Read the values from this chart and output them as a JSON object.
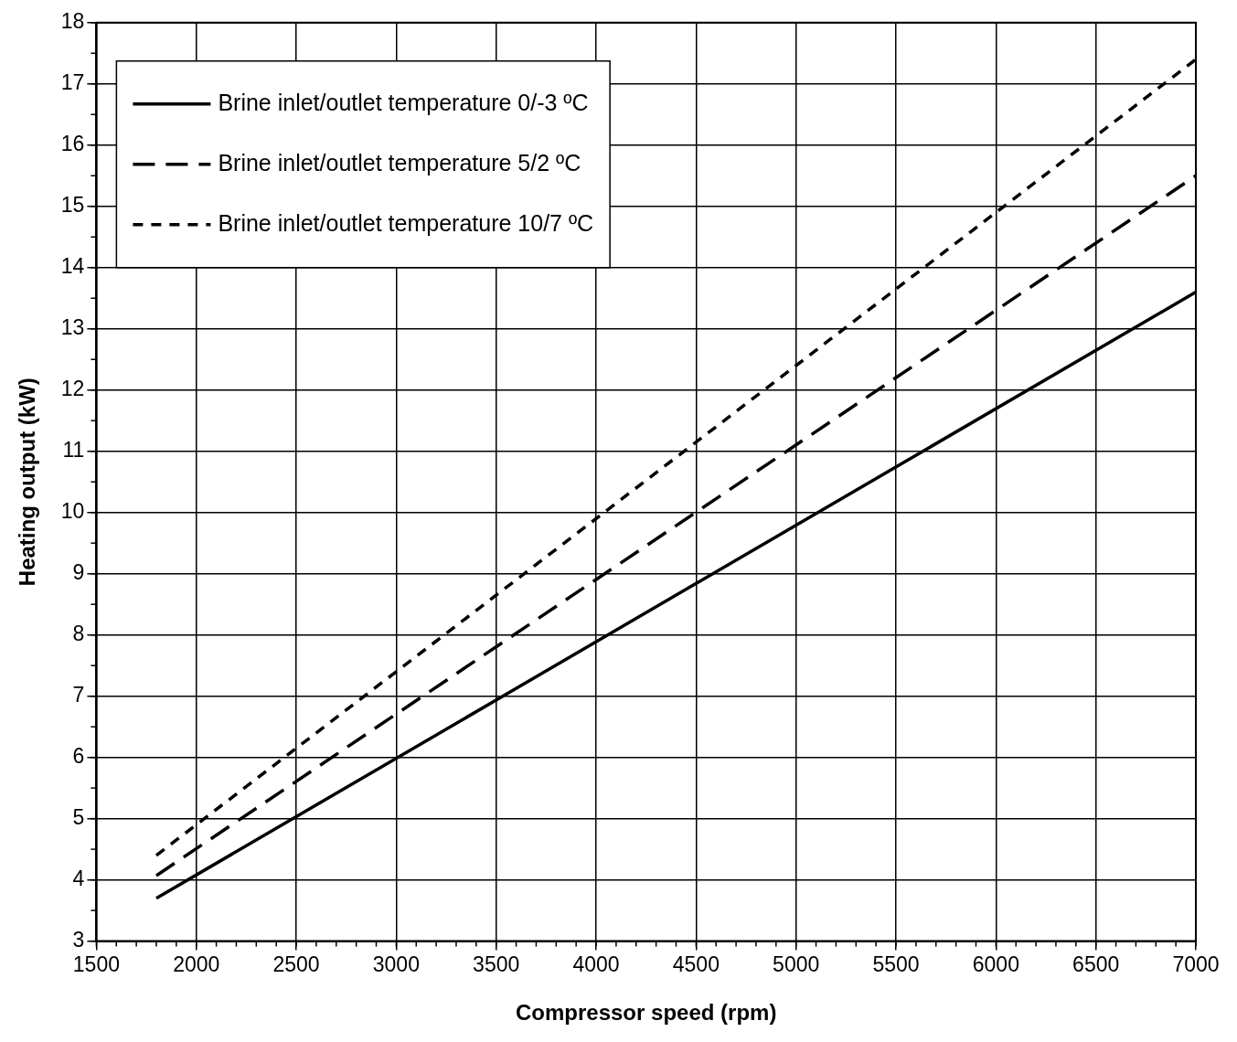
{
  "chart_data": {
    "type": "line",
    "xlabel": "Compressor speed (rpm)",
    "ylabel": "Heating output (kW)",
    "xlim": [
      1500,
      7000
    ],
    "xticks": [
      1500,
      2000,
      2500,
      3000,
      3500,
      4000,
      4500,
      5000,
      5500,
      6000,
      6500,
      7000
    ],
    "ylim": [
      3,
      18
    ],
    "yticks": [
      3,
      4,
      5,
      6,
      7,
      8,
      9,
      10,
      11,
      12,
      13,
      14,
      15,
      16,
      17,
      18
    ],
    "grid": true,
    "legend": "top left",
    "marker": "none",
    "x": [
      1800,
      7000
    ],
    "series": [
      {
        "name": "Brine inlet/outlet temperature 0/-3 ºC",
        "color": "#000000",
        "line_style": "solid",
        "values": [
          3.7,
          13.6
        ]
      },
      {
        "name": "Brine inlet/outlet temperature 5/2 ºC",
        "color": "#000000",
        "line_style": "dashed",
        "values": [
          4.07,
          15.5
        ]
      },
      {
        "name": "Brine inlet/outlet temperature 10/7 ºC",
        "color": "#000000",
        "line_style": "dotted",
        "values": [
          4.4,
          17.4
        ]
      }
    ]
  }
}
